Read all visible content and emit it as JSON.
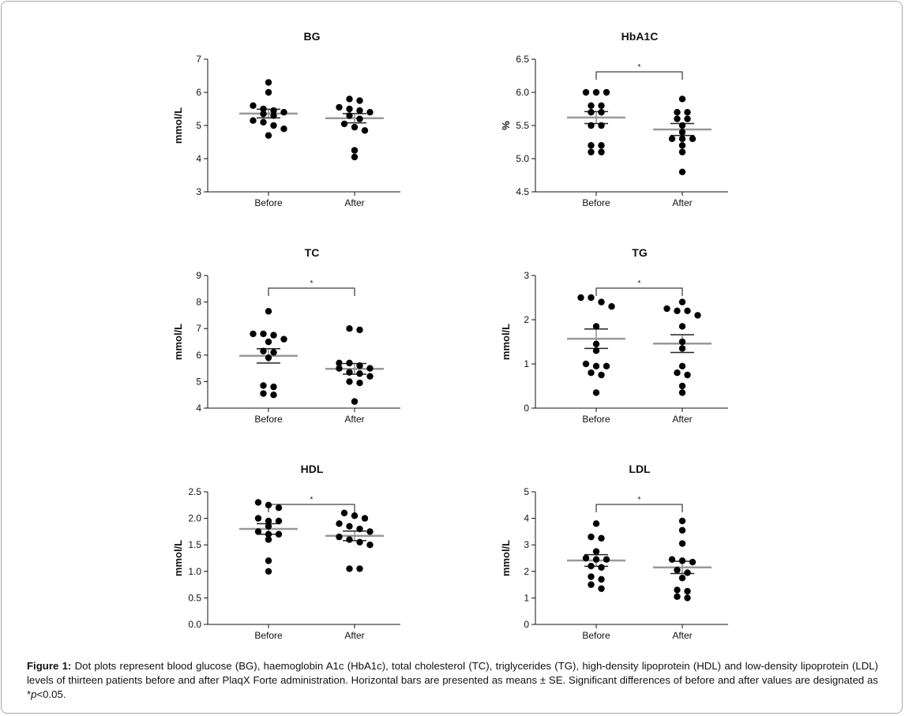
{
  "chart_data": [
    {
      "type": "scatter",
      "title": "BG",
      "ylabel": "mmol/L",
      "categories": [
        "Before",
        "After"
      ],
      "ylim": [
        3,
        7
      ],
      "yticks": [
        "3",
        "4",
        "5",
        "6",
        "7"
      ],
      "series": [
        {
          "values": [
            6.3,
            6.0,
            5.6,
            5.5,
            5.45,
            5.4,
            5.35,
            5.3,
            5.15,
            5.1,
            5.0,
            4.9,
            4.7
          ]
        },
        {
          "values": [
            5.8,
            5.75,
            5.55,
            5.5,
            5.45,
            5.4,
            5.3,
            5.2,
            5.05,
            4.95,
            4.85,
            4.25,
            4.05
          ]
        }
      ],
      "means": [
        5.36,
        5.22
      ],
      "se": [
        0.13,
        0.14
      ],
      "significance": null
    },
    {
      "type": "scatter",
      "title": "HbA1C",
      "ylabel": "%",
      "categories": [
        "Before",
        "After"
      ],
      "ylim": [
        4.5,
        6.5
      ],
      "yticks": [
        "4.5",
        "5.0",
        "5.5",
        "6.0",
        "6.5"
      ],
      "series": [
        {
          "values": [
            6.0,
            6.0,
            6.0,
            5.8,
            5.8,
            5.7,
            5.7,
            5.5,
            5.5,
            5.2,
            5.2,
            5.1,
            5.1
          ]
        },
        {
          "values": [
            5.9,
            5.7,
            5.7,
            5.6,
            5.6,
            5.5,
            5.4,
            5.3,
            5.3,
            5.3,
            5.2,
            5.1,
            4.8
          ]
        }
      ],
      "means": [
        5.62,
        5.44
      ],
      "se": [
        0.09,
        0.09
      ],
      "significance": "*"
    },
    {
      "type": "scatter",
      "title": "TC",
      "ylabel": "mmol/L",
      "categories": [
        "Before",
        "After"
      ],
      "ylim": [
        4,
        9
      ],
      "yticks": [
        "4",
        "5",
        "6",
        "7",
        "8",
        "9"
      ],
      "series": [
        {
          "values": [
            7.65,
            6.8,
            6.8,
            6.75,
            6.6,
            6.5,
            6.15,
            6.1,
            5.9,
            4.85,
            4.8,
            4.55,
            4.5
          ]
        },
        {
          "values": [
            7.0,
            6.95,
            5.7,
            5.7,
            5.6,
            5.5,
            5.5,
            5.35,
            5.3,
            5.2,
            5.0,
            4.95,
            4.25
          ]
        }
      ],
      "means": [
        5.97,
        5.48
      ],
      "se": [
        0.27,
        0.2
      ],
      "significance": "*"
    },
    {
      "type": "scatter",
      "title": "TG",
      "ylabel": "mmol/L",
      "categories": [
        "Before",
        "After"
      ],
      "ylim": [
        0,
        3
      ],
      "yticks": [
        "0",
        "1",
        "2",
        "3"
      ],
      "series": [
        {
          "values": [
            2.5,
            2.5,
            2.4,
            2.3,
            1.85,
            1.45,
            1.3,
            1.0,
            0.95,
            0.95,
            0.8,
            0.75,
            0.35
          ]
        },
        {
          "values": [
            2.4,
            2.25,
            2.2,
            2.2,
            2.1,
            1.85,
            1.5,
            1.35,
            0.95,
            0.8,
            0.75,
            0.5,
            0.35
          ]
        }
      ],
      "means": [
        1.57,
        1.46
      ],
      "se": [
        0.22,
        0.2
      ],
      "significance": "*"
    },
    {
      "type": "scatter",
      "title": "HDL",
      "ylabel": "mmol/L",
      "categories": [
        "Before",
        "After"
      ],
      "ylim": [
        0,
        2.5
      ],
      "yticks": [
        "0.0",
        "0.5",
        "1.0",
        "1.5",
        "2.0",
        "2.5"
      ],
      "series": [
        {
          "values": [
            2.3,
            2.25,
            2.2,
            2.0,
            1.95,
            1.95,
            1.85,
            1.75,
            1.7,
            1.7,
            1.6,
            1.2,
            1.0
          ]
        },
        {
          "values": [
            2.1,
            2.05,
            2.0,
            1.9,
            1.85,
            1.8,
            1.75,
            1.65,
            1.6,
            1.55,
            1.5,
            1.05,
            1.05
          ]
        }
      ],
      "means": [
        1.8,
        1.67
      ],
      "se": [
        0.1,
        0.09
      ],
      "significance": "*"
    },
    {
      "type": "scatter",
      "title": "LDL",
      "ylabel": "mmol/L",
      "categories": [
        "Before",
        "After"
      ],
      "ylim": [
        0,
        5
      ],
      "yticks": [
        "0",
        "1",
        "2",
        "3",
        "4",
        "5"
      ],
      "series": [
        {
          "values": [
            3.8,
            3.3,
            3.25,
            2.75,
            2.5,
            2.45,
            2.45,
            2.2,
            2.15,
            1.8,
            1.7,
            1.5,
            1.35
          ]
        },
        {
          "values": [
            3.9,
            3.55,
            3.05,
            2.45,
            2.4,
            2.35,
            2.05,
            1.95,
            1.75,
            1.3,
            1.25,
            1.05,
            1.0
          ]
        }
      ],
      "means": [
        2.41,
        2.15
      ],
      "se": [
        0.22,
        0.23
      ],
      "significance": "*"
    }
  ],
  "caption": {
    "label": "Figure 1:",
    "text_before": " Dot plots represent blood glucose (BG), haemoglobin A1c (HbA1c), total cholesterol (TC), triglycerides (TG), high-density lipoprotein (HDL) and low-density lipoprotein (LDL) levels of thirteen patients before and after PlaqX Forte administration. Horizontal bars are presented as means ± SE. Significant differences of before and after values are designated as *",
    "p_italic": "p",
    "text_after": "<0.05."
  }
}
